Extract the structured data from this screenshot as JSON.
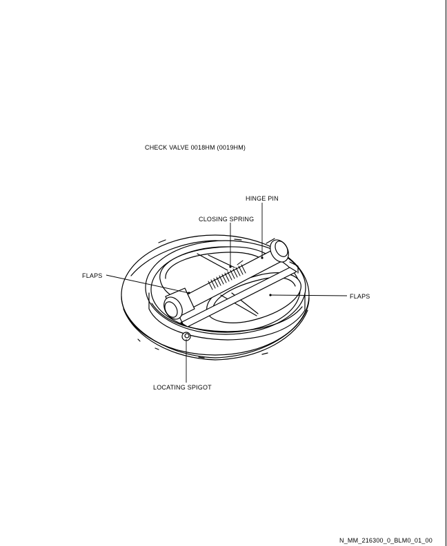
{
  "title": "CHECK VALVE 0018HM (0019HM)",
  "labels": {
    "hinge_pin": "HINGE PIN",
    "closing_spring": "CLOSING SPRING",
    "flaps_left": "FLAPS",
    "flaps_right": "FLAPS",
    "locating_spigot": "LOCATING SPIGOT"
  },
  "footer_ref": "N_MM_216300_0_BLM0_01_00"
}
